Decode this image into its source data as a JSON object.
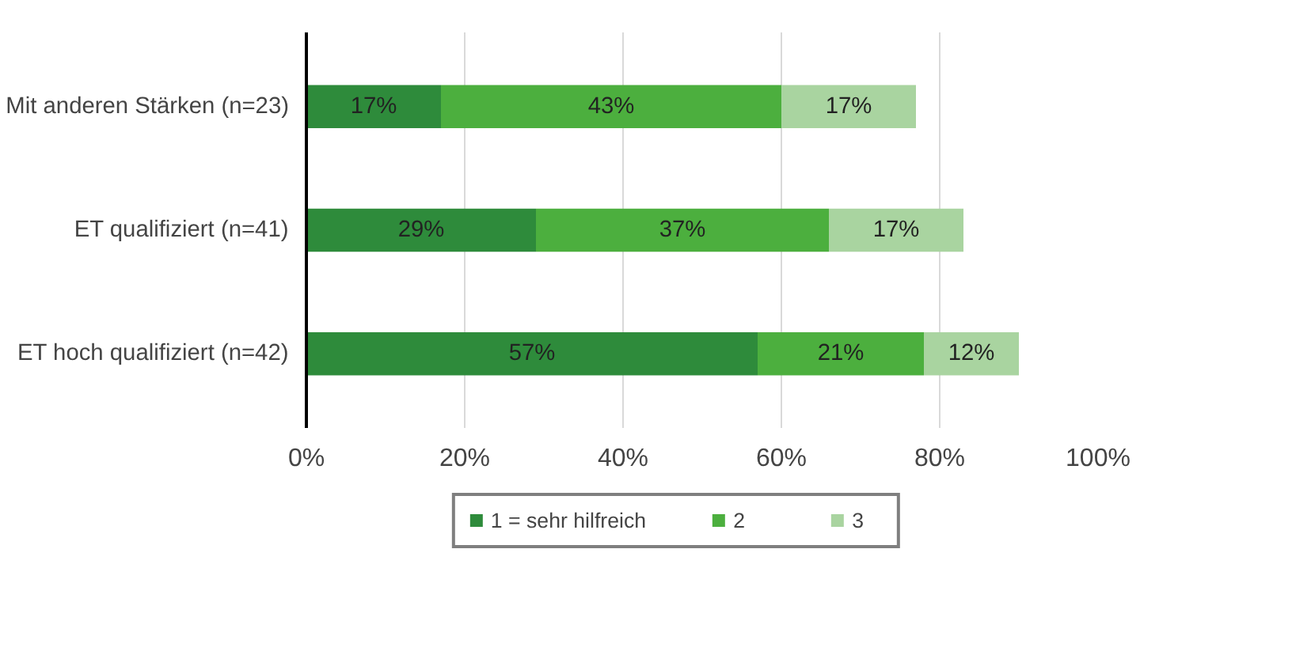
{
  "chart_data": {
    "type": "bar",
    "orientation": "horizontal",
    "stacked": true,
    "categories": [
      "Mit anderen Stärken (n=23)",
      "ET qualifiziert (n=41)",
      "ET hoch qualifiziert (n=42)"
    ],
    "series": [
      {
        "name": "1 = sehr hilfreich",
        "color": "#2e8b3b",
        "values": [
          17,
          29,
          57
        ],
        "value_labels": [
          "17%",
          "29%",
          "57%"
        ]
      },
      {
        "name": "2",
        "color": "#4caf3e",
        "values": [
          43,
          37,
          21
        ],
        "value_labels": [
          "43%",
          "37%",
          "21%"
        ]
      },
      {
        "name": "3",
        "color": "#a9d4a0",
        "values": [
          17,
          17,
          12
        ],
        "value_labels": [
          "17%",
          "17%",
          "12%"
        ]
      }
    ],
    "xlim": [
      0,
      100
    ],
    "xticks": [
      {
        "value": 0,
        "label": "0%"
      },
      {
        "value": 20,
        "label": "20%"
      },
      {
        "value": 40,
        "label": "40%"
      },
      {
        "value": 60,
        "label": "60%"
      },
      {
        "value": 80,
        "label": "80%"
      },
      {
        "value": 100,
        "label": "100%"
      }
    ],
    "grid": "x",
    "legend": "bottom"
  }
}
